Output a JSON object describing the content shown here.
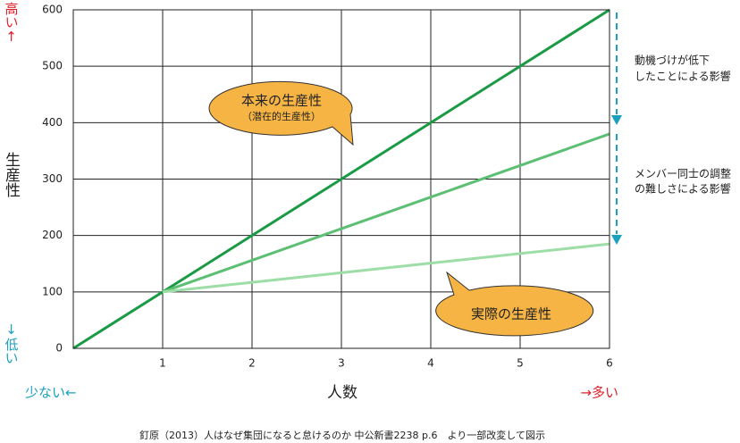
{
  "chart_data": {
    "type": "line",
    "y_label": "生産性",
    "y_high": "高い↑",
    "y_low": "↓低い",
    "x_label": "人数",
    "x_low": "少ない←",
    "x_high": "→多い",
    "x": [
      0,
      1,
      2,
      3,
      4,
      5,
      6
    ],
    "xlim": [
      0,
      6
    ],
    "ylim": [
      0,
      600
    ],
    "xticks": [
      1,
      2,
      3,
      4,
      5,
      6
    ],
    "yticks": [
      0,
      100,
      200,
      300,
      400,
      500,
      600
    ],
    "grid": true,
    "series": [
      {
        "color": "#1a9a45",
        "values": [
          0,
          100,
          200,
          300,
          400,
          500,
          600
        ]
      },
      {
        "color": "#5cbf74",
        "values": [
          null,
          100,
          156,
          212,
          268,
          324,
          380
        ]
      },
      {
        "color": "#9ddea6",
        "values": [
          null,
          100,
          117,
          134,
          151,
          168,
          185
        ]
      }
    ],
    "annotations": [
      "本来の生産性",
      "（潜在的生産性）",
      "実際の生産性",
      "動機づけが低下",
      "したことによる影響",
      "メンバー同士の調整",
      "の難しさによる影響"
    ],
    "source": "釘原（2013）人はなぜ集団になると怠けるのか 中公新書2238 p.6　より一部改変して図示"
  }
}
